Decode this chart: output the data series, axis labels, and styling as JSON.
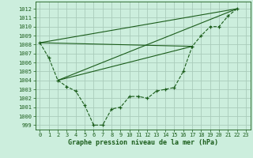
{
  "bg_color": "#cceedd",
  "grid_color": "#aaccbb",
  "line_color": "#1a5c1a",
  "xlabel": "Graphe pression niveau de la mer (hPa)",
  "ylim": [
    998.5,
    1012.8
  ],
  "xlim": [
    -0.5,
    23.5
  ],
  "yticks": [
    999,
    1000,
    1001,
    1002,
    1003,
    1004,
    1005,
    1006,
    1007,
    1008,
    1009,
    1010,
    1011,
    1012
  ],
  "xticks": [
    0,
    1,
    2,
    3,
    4,
    5,
    6,
    7,
    8,
    9,
    10,
    11,
    12,
    13,
    14,
    15,
    16,
    17,
    18,
    19,
    20,
    21,
    22,
    23
  ],
  "main_x": [
    0,
    1,
    2,
    3,
    4,
    5,
    6,
    7,
    8,
    9,
    10,
    11,
    12,
    13,
    14,
    15,
    16,
    17,
    18,
    19,
    20,
    21,
    22
  ],
  "main_y": [
    1008.2,
    1006.5,
    1004.0,
    1003.3,
    1002.8,
    1001.2,
    999.0,
    999.0,
    1000.8,
    1001.0,
    1002.2,
    1002.2,
    1002.0,
    1002.8,
    1003.0,
    1003.2,
    1005.0,
    1007.8,
    1009.0,
    1010.0,
    1010.0,
    1011.2,
    1012.0
  ],
  "trend_lines": [
    [
      [
        0,
        1008.2
      ],
      [
        22,
        1012.0
      ]
    ],
    [
      [
        2,
        1004.0
      ],
      [
        22,
        1012.0
      ]
    ],
    [
      [
        2,
        1004.0
      ],
      [
        17,
        1007.8
      ]
    ],
    [
      [
        0,
        1008.2
      ],
      [
        17,
        1007.8
      ]
    ]
  ],
  "tick_fontsize": 5.0,
  "xlabel_fontsize": 6.0,
  "line_width": 0.8,
  "marker_size": 3.0
}
